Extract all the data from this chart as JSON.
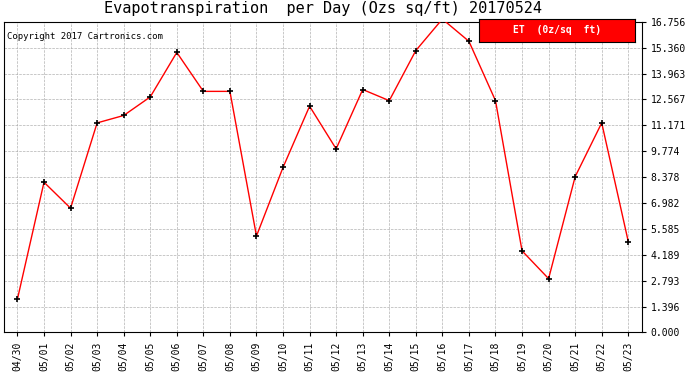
{
  "title": "Evapotranspiration  per Day (Ozs sq/ft) 20170524",
  "copyright": "Copyright 2017 Cartronics.com",
  "legend_label": "ET  (0z/sq  ft)",
  "x_labels": [
    "04/30",
    "05/01",
    "05/02",
    "05/03",
    "05/04",
    "05/05",
    "05/06",
    "05/07",
    "05/08",
    "05/09",
    "05/10",
    "05/11",
    "05/12",
    "05/13",
    "05/14",
    "05/15",
    "05/16",
    "05/17",
    "05/18",
    "05/19",
    "05/20",
    "05/21",
    "05/22",
    "05/23"
  ],
  "y_values": [
    1.8,
    8.1,
    6.7,
    11.3,
    11.7,
    12.7,
    15.1,
    13.0,
    13.0,
    5.2,
    8.9,
    12.2,
    9.9,
    13.1,
    12.5,
    15.2,
    16.9,
    15.7,
    12.5,
    4.4,
    2.9,
    8.4,
    11.3,
    4.9
  ],
  "y_ticks": [
    0.0,
    1.396,
    2.793,
    4.189,
    5.585,
    6.982,
    8.378,
    9.774,
    11.171,
    12.567,
    13.963,
    15.36,
    16.756
  ],
  "line_color": "red",
  "marker": "+",
  "marker_color": "black",
  "grid_color": "#aaaaaa",
  "bg_color": "white",
  "title_fontsize": 11,
  "tick_fontsize": 7,
  "copyright_fontsize": 6.5,
  "legend_fontsize": 7
}
